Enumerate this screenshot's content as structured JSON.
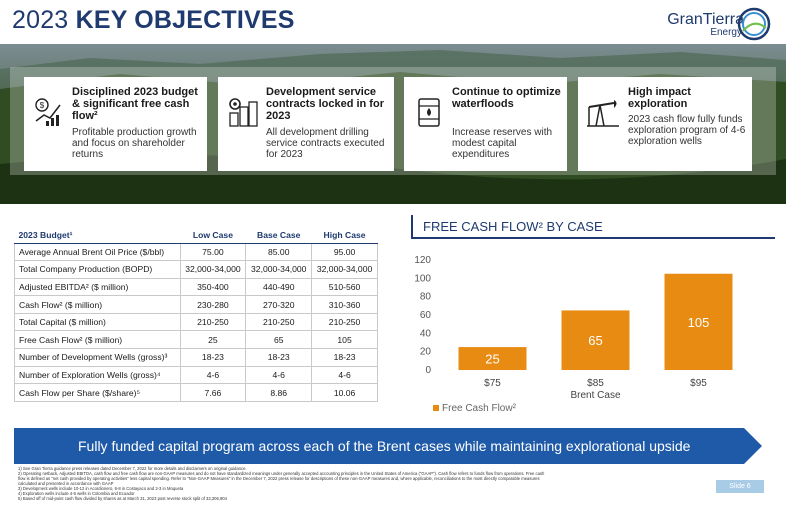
{
  "header": {
    "title_light": "2023 ",
    "title_bold": "KEY OBJECTIVES",
    "logo_name": "GranTierra",
    "logo_sub": "Energy"
  },
  "cards": [
    {
      "icon": "money-chart-icon",
      "heading": "Disciplined 2023 budget & significant free cash flow²",
      "body": "Profitable production growth and focus on shareholder returns"
    },
    {
      "icon": "gear-buildings-icon",
      "heading": "Development service contracts locked in for 2023",
      "body": "All development drilling service contracts executed for 2023"
    },
    {
      "icon": "oil-barrel-icon",
      "heading": "Continue to optimize waterfloods",
      "body": "Increase reserves with modest capital expenditures"
    },
    {
      "icon": "oil-pumpjack-icon",
      "heading": "High impact exploration",
      "body": "2023 cash flow fully funds exploration program of 4-6 exploration wells"
    }
  ],
  "budget": {
    "headers": [
      "2023 Budget¹",
      "Low Case",
      "Base Case",
      "High Case"
    ],
    "rows": [
      [
        "Average Annual Brent Oil Price ($/bbl)",
        "75.00",
        "85.00",
        "95.00"
      ],
      [
        "Total Company Production (BOPD)",
        "32,000-34,000",
        "32,000-34,000",
        "32,000-34,000"
      ],
      [
        "Adjusted EBITDA² ($ million)",
        "350-400",
        "440-490",
        "510-560"
      ],
      [
        "Cash Flow² ($ million)",
        "230-280",
        "270-320",
        "310-360"
      ],
      [
        "Total Capital ($ million)",
        "210-250",
        "210-250",
        "210-250"
      ],
      [
        "Free Cash Flow² ($ million)",
        "25",
        "65",
        "105"
      ],
      [
        "Number of Development Wells (gross)³",
        "18-23",
        "18-23",
        "18-23"
      ],
      [
        "Number of Exploration Wells (gross)⁴",
        "4-6",
        "4-6",
        "4-6"
      ],
      [
        "Cash Flow per Share ($/share)⁵",
        "7.66",
        "8.86",
        "10.06"
      ]
    ]
  },
  "chart_title": "FREE CASH FLOW² BY CASE",
  "chart_data": {
    "type": "bar",
    "title": "FREE CASH FLOW² BY CASE",
    "categories": [
      "$75",
      "$85",
      "$95"
    ],
    "series": [
      {
        "name": "Free Cash Flow²",
        "values": [
          25,
          65,
          105
        ]
      }
    ],
    "xlabel": "Brent Case",
    "ylabel": "",
    "ylim": [
      0,
      120
    ],
    "yticks": [
      0,
      20,
      40,
      60,
      80,
      100,
      120
    ],
    "grid": false,
    "legend": "bottom-left",
    "color": "#e88b12"
  },
  "banner": "Fully funded capital program across each of the Brent cases while maintaining explorational upside",
  "footnotes": [
    "1)   See Gran Tierra guidance press releases dated December 7, 2022 for more details and disclaimers on original guidance.",
    "2)   Operating netback, Adjusted EBITDA, cash flow and free cash flow are non-GAAP measures and do not have standardized meanings under generally accepted accounting principles in the United States of America (\"GAAP\"). Cash flow refers to funds flow from operations. Free cash",
    "      flow is defined as \"net cash provided by operating activities\" less capital spending. Refer to \"Non-GAAP Measures\" in the December 7, 2022 press release for descriptions of these non-GAAP measures and, where applicable, reconciliations to the most directly comparable measures",
    "      calculated and presented in accordance with GAAP",
    "3)   Development wells include 10-12 in Acordionero, 6-8 in Costayaco and 2-3 in Moqueta",
    "4)   Exploration wells include 4-6 wells in Colombia and Ecuador",
    "5)   Based off of mid-point cash flow divided by shares as at March 31, 2023 post reverse stock split of 33,306,904"
  ],
  "slide_label": "Slide 6",
  "colors": {
    "navy": "#1e3a6e",
    "orange": "#e88b12",
    "banner": "#1f5aa8"
  }
}
